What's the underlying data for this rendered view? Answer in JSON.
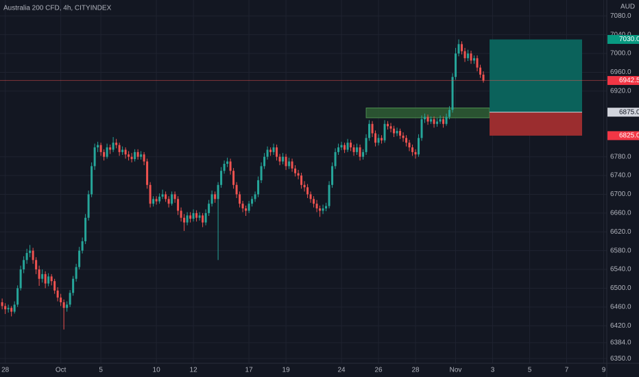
{
  "chart_data": {
    "type": "candlestick",
    "title": "Australia 200 CFD, 4h, CITYINDEX",
    "currency": "AUD",
    "up_color": "#26a69a",
    "down_color": "#ef5350",
    "grid": true,
    "candles": [
      [
        6470,
        6478,
        6455,
        6462
      ],
      [
        6462,
        6468,
        6445,
        6455
      ],
      [
        6455,
        6465,
        6448,
        6458
      ],
      [
        6458,
        6462,
        6440,
        6450
      ],
      [
        6450,
        6472,
        6446,
        6465
      ],
      [
        6465,
        6506,
        6460,
        6500
      ],
      [
        6500,
        6548,
        6495,
        6540
      ],
      [
        6540,
        6568,
        6532,
        6560
      ],
      [
        6560,
        6584,
        6552,
        6575
      ],
      [
        6575,
        6592,
        6566,
        6580
      ],
      [
        6580,
        6586,
        6552,
        6560
      ],
      [
        6560,
        6566,
        6530,
        6540
      ],
      [
        6540,
        6548,
        6505,
        6520
      ],
      [
        6520,
        6540,
        6512,
        6530
      ],
      [
        6530,
        6536,
        6500,
        6510
      ],
      [
        6510,
        6532,
        6504,
        6525
      ],
      [
        6525,
        6530,
        6506,
        6515
      ],
      [
        6515,
        6520,
        6488,
        6495
      ],
      [
        6495,
        6502,
        6472,
        6480
      ],
      [
        6480,
        6488,
        6462,
        6470
      ],
      [
        6470,
        6476,
        6412,
        6458
      ],
      [
        6458,
        6472,
        6450,
        6465
      ],
      [
        6465,
        6496,
        6460,
        6490
      ],
      [
        6490,
        6526,
        6484,
        6520
      ],
      [
        6520,
        6552,
        6514,
        6545
      ],
      [
        6545,
        6588,
        6540,
        6580
      ],
      [
        6580,
        6608,
        6574,
        6600
      ],
      [
        6600,
        6658,
        6594,
        6650
      ],
      [
        6650,
        6708,
        6644,
        6700
      ],
      [
        6700,
        6768,
        6694,
        6760
      ],
      [
        6760,
        6808,
        6752,
        6800
      ],
      [
        6800,
        6812,
        6790,
        6805
      ],
      [
        6805,
        6810,
        6782,
        6790
      ],
      [
        6790,
        6796,
        6772,
        6780
      ],
      [
        6780,
        6808,
        6776,
        6800
      ],
      [
        6800,
        6806,
        6786,
        6795
      ],
      [
        6795,
        6822,
        6790,
        6810
      ],
      [
        6810,
        6818,
        6798,
        6805
      ],
      [
        6805,
        6810,
        6782,
        6790
      ],
      [
        6790,
        6802,
        6784,
        6795
      ],
      [
        6795,
        6800,
        6776,
        6785
      ],
      [
        6785,
        6792,
        6772,
        6780
      ],
      [
        6780,
        6788,
        6768,
        6775
      ],
      [
        6775,
        6796,
        6770,
        6790
      ],
      [
        6790,
        6796,
        6774,
        6780
      ],
      [
        6780,
        6792,
        6774,
        6785
      ],
      [
        6785,
        6790,
        6762,
        6770
      ],
      [
        6770,
        6776,
        6712,
        6720
      ],
      [
        6720,
        6726,
        6672,
        6680
      ],
      [
        6680,
        6696,
        6674,
        6690
      ],
      [
        6690,
        6696,
        6678,
        6685
      ],
      [
        6685,
        6702,
        6680,
        6695
      ],
      [
        6695,
        6710,
        6690,
        6700
      ],
      [
        6700,
        6706,
        6684,
        6690
      ],
      [
        6690,
        6696,
        6672,
        6680
      ],
      [
        6680,
        6706,
        6676,
        6700
      ],
      [
        6700,
        6706,
        6682,
        6690
      ],
      [
        6690,
        6696,
        6656,
        6665
      ],
      [
        6665,
        6672,
        6642,
        6650
      ],
      [
        6650,
        6658,
        6622,
        6640
      ],
      [
        6640,
        6662,
        6634,
        6655
      ],
      [
        6655,
        6662,
        6640,
        6648
      ],
      [
        6648,
        6668,
        6642,
        6660
      ],
      [
        6660,
        6666,
        6642,
        6650
      ],
      [
        6650,
        6662,
        6644,
        6655
      ],
      [
        6655,
        6660,
        6630,
        6640
      ],
      [
        6640,
        6668,
        6634,
        6660
      ],
      [
        6660,
        6688,
        6654,
        6680
      ],
      [
        6680,
        6708,
        6674,
        6700
      ],
      [
        6700,
        6706,
        6682,
        6690
      ],
      [
        6690,
        6726,
        6560,
        6720
      ],
      [
        6720,
        6758,
        6714,
        6750
      ],
      [
        6750,
        6772,
        6744,
        6765
      ],
      [
        6765,
        6778,
        6758,
        6770
      ],
      [
        6770,
        6776,
        6742,
        6750
      ],
      [
        6750,
        6756,
        6712,
        6720
      ],
      [
        6720,
        6726,
        6692,
        6700
      ],
      [
        6700,
        6706,
        6672,
        6680
      ],
      [
        6680,
        6686,
        6662,
        6670
      ],
      [
        6670,
        6676,
        6654,
        6665
      ],
      [
        6665,
        6686,
        6660,
        6680
      ],
      [
        6680,
        6696,
        6674,
        6690
      ],
      [
        6690,
        6706,
        6684,
        6700
      ],
      [
        6700,
        6738,
        6694,
        6730
      ],
      [
        6730,
        6768,
        6724,
        6760
      ],
      [
        6760,
        6788,
        6754,
        6780
      ],
      [
        6780,
        6802,
        6774,
        6795
      ],
      [
        6795,
        6800,
        6782,
        6790
      ],
      [
        6790,
        6808,
        6784,
        6800
      ],
      [
        6800,
        6806,
        6772,
        6780
      ],
      [
        6780,
        6786,
        6762,
        6770
      ],
      [
        6770,
        6788,
        6764,
        6780
      ],
      [
        6780,
        6786,
        6752,
        6760
      ],
      [
        6760,
        6778,
        6754,
        6770
      ],
      [
        6770,
        6776,
        6748,
        6755
      ],
      [
        6755,
        6762,
        6738,
        6745
      ],
      [
        6745,
        6752,
        6732,
        6740
      ],
      [
        6740,
        6746,
        6712,
        6720
      ],
      [
        6720,
        6728,
        6706,
        6715
      ],
      [
        6715,
        6722,
        6692,
        6700
      ],
      [
        6700,
        6706,
        6682,
        6690
      ],
      [
        6690,
        6696,
        6672,
        6680
      ],
      [
        6680,
        6688,
        6662,
        6670
      ],
      [
        6670,
        6676,
        6652,
        6665
      ],
      [
        6665,
        6678,
        6658,
        6670
      ],
      [
        6670,
        6682,
        6664,
        6675
      ],
      [
        6675,
        6728,
        6670,
        6720
      ],
      [
        6720,
        6768,
        6714,
        6760
      ],
      [
        6760,
        6798,
        6754,
        6790
      ],
      [
        6790,
        6808,
        6784,
        6800
      ],
      [
        6800,
        6812,
        6794,
        6805
      ],
      [
        6805,
        6810,
        6788,
        6795
      ],
      [
        6795,
        6818,
        6790,
        6810
      ],
      [
        6810,
        6816,
        6792,
        6800
      ],
      [
        6800,
        6806,
        6782,
        6790
      ],
      [
        6790,
        6808,
        6784,
        6800
      ],
      [
        6800,
        6806,
        6772,
        6780
      ],
      [
        6780,
        6796,
        6774,
        6790
      ],
      [
        6790,
        6828,
        6784,
        6820
      ],
      [
        6820,
        6858,
        6814,
        6850
      ],
      [
        6850,
        6856,
        6822,
        6830
      ],
      [
        6830,
        6836,
        6802,
        6810
      ],
      [
        6810,
        6828,
        6804,
        6820
      ],
      [
        6820,
        6826,
        6808,
        6815
      ],
      [
        6815,
        6858,
        6810,
        6850
      ],
      [
        6850,
        6856,
        6838,
        6845
      ],
      [
        6845,
        6852,
        6832,
        6840
      ],
      [
        6840,
        6846,
        6822,
        6830
      ],
      [
        6830,
        6842,
        6824,
        6835
      ],
      [
        6835,
        6840,
        6818,
        6825
      ],
      [
        6825,
        6832,
        6812,
        6820
      ],
      [
        6820,
        6826,
        6802,
        6810
      ],
      [
        6810,
        6816,
        6792,
        6800
      ],
      [
        6800,
        6806,
        6782,
        6790
      ],
      [
        6790,
        6796,
        6776,
        6785
      ],
      [
        6785,
        6828,
        6780,
        6820
      ],
      [
        6820,
        6868,
        6814,
        6860
      ],
      [
        6860,
        6872,
        6852,
        6865
      ],
      [
        6865,
        6870,
        6848,
        6855
      ],
      [
        6855,
        6866,
        6850,
        6860
      ],
      [
        6860,
        6866,
        6842,
        6850
      ],
      [
        6850,
        6862,
        6844,
        6855
      ],
      [
        6855,
        6868,
        6850,
        6860
      ],
      [
        6860,
        6866,
        6842,
        6850
      ],
      [
        6850,
        6872,
        6846,
        6865
      ],
      [
        6865,
        6888,
        6860,
        6880
      ],
      [
        6880,
        6958,
        6874,
        6950
      ],
      [
        6950,
        7012,
        6944,
        7000
      ],
      [
        7000,
        7030,
        6994,
        7020
      ],
      [
        7020,
        7026,
        6998,
        7005
      ],
      [
        7005,
        7012,
        6982,
        6990
      ],
      [
        6990,
        7008,
        6984,
        7000
      ],
      [
        7000,
        7006,
        6978,
        6985
      ],
      [
        6985,
        6996,
        6978,
        6990
      ],
      [
        6990,
        6996,
        6962,
        6970
      ],
      [
        6970,
        6976,
        6948,
        6955
      ],
      [
        6955,
        6962,
        6938,
        6942.5
      ]
    ],
    "xlim": [
      -0.7,
      196
    ],
    "xticks": [
      {
        "value": 1,
        "label": "28"
      },
      {
        "value": 19,
        "label": "Oct"
      },
      {
        "value": 32,
        "label": "5"
      },
      {
        "value": 50,
        "label": "10"
      },
      {
        "value": 62,
        "label": "12"
      },
      {
        "value": 80,
        "label": "17"
      },
      {
        "value": 92,
        "label": "19"
      },
      {
        "value": 110,
        "label": "24"
      },
      {
        "value": 122,
        "label": "26"
      },
      {
        "value": 134,
        "label": "28"
      },
      {
        "value": 147,
        "label": "Nov"
      },
      {
        "value": 159,
        "label": "3"
      },
      {
        "value": 171,
        "label": "5"
      },
      {
        "value": 183,
        "label": "7"
      },
      {
        "value": 195,
        "label": "9"
      }
    ],
    "ylim": [
      6340,
      7114
    ],
    "yticks": [
      {
        "value": 6350,
        "label": "6350.0"
      },
      {
        "value": 6384,
        "label": "6384.0"
      },
      {
        "value": 6420,
        "label": "6420.0"
      },
      {
        "value": 6460,
        "label": "6460.0"
      },
      {
        "value": 6500,
        "label": "6500.0"
      },
      {
        "value": 6540,
        "label": "6540.0"
      },
      {
        "value": 6580,
        "label": "6580.0"
      },
      {
        "value": 6620,
        "label": "6620.0"
      },
      {
        "value": 6660,
        "label": "6660.0"
      },
      {
        "value": 6700,
        "label": "6700.0"
      },
      {
        "value": 6740,
        "label": "6740.0"
      },
      {
        "value": 6780,
        "label": "6780.0"
      },
      {
        "value": 6920,
        "label": "6920.0"
      },
      {
        "value": 6960,
        "label": "6960.0"
      },
      {
        "value": 7000,
        "label": "7000.0"
      },
      {
        "value": 7040,
        "label": "7040.0"
      },
      {
        "value": 7080,
        "label": "7080.0"
      }
    ],
    "zone": {
      "x_range": [
        118,
        158
      ],
      "range": [
        6863,
        6884
      ]
    },
    "position": {
      "x_range": [
        158,
        188
      ],
      "target": {
        "value": 7030,
        "label": "7030.0"
      },
      "entry": {
        "value": 6875,
        "label": "6875.0"
      },
      "stop": {
        "value": 6825,
        "label": "6825.0"
      }
    }
  }
}
